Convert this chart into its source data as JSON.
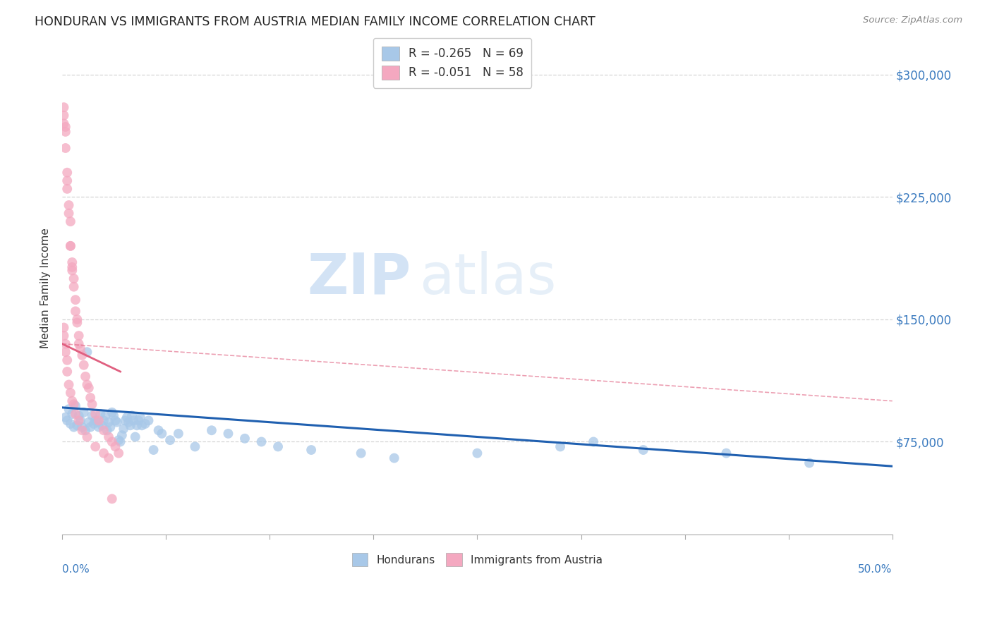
{
  "title": "HONDURAN VS IMMIGRANTS FROM AUSTRIA MEDIAN FAMILY INCOME CORRELATION CHART",
  "source": "Source: ZipAtlas.com",
  "ylabel": "Median Family Income",
  "y_ticks": [
    75000,
    150000,
    225000,
    300000
  ],
  "y_tick_labels": [
    "$75,000",
    "$150,000",
    "$225,000",
    "$300,000"
  ],
  "x_min": 0.0,
  "x_max": 0.5,
  "y_min": 18000,
  "y_max": 320000,
  "legend_blue_label": "R = -0.265   N = 69",
  "legend_pink_label": "R = -0.051   N = 58",
  "legend_bottom_blue": "Hondurans",
  "legend_bottom_pink": "Immigrants from Austria",
  "blue_color": "#a8c8e8",
  "pink_color": "#f4a8c0",
  "blue_line_color": "#2060b0",
  "pink_line_color": "#e06080",
  "watermark_zip": "ZIP",
  "watermark_atlas": "atlas",
  "blue_scatter_x": [
    0.002,
    0.003,
    0.004,
    0.005,
    0.006,
    0.007,
    0.008,
    0.009,
    0.01,
    0.011,
    0.012,
    0.013,
    0.014,
    0.015,
    0.016,
    0.017,
    0.018,
    0.019,
    0.02,
    0.021,
    0.022,
    0.023,
    0.024,
    0.025,
    0.026,
    0.027,
    0.028,
    0.029,
    0.03,
    0.031,
    0.032,
    0.033,
    0.034,
    0.035,
    0.036,
    0.037,
    0.038,
    0.039,
    0.04,
    0.041,
    0.042,
    0.043,
    0.044,
    0.045,
    0.046,
    0.047,
    0.048,
    0.05,
    0.052,
    0.055,
    0.058,
    0.06,
    0.065,
    0.07,
    0.08,
    0.09,
    0.1,
    0.11,
    0.12,
    0.13,
    0.15,
    0.18,
    0.2,
    0.25,
    0.3,
    0.32,
    0.35,
    0.4,
    0.45
  ],
  "blue_scatter_y": [
    90000,
    88000,
    95000,
    86000,
    92000,
    84000,
    97000,
    85000,
    91000,
    88000,
    84000,
    93000,
    82000,
    130000,
    87000,
    84000,
    91000,
    86000,
    88000,
    87000,
    84000,
    92000,
    85000,
    88000,
    91000,
    82000,
    87000,
    84000,
    93000,
    91000,
    88000,
    87000,
    76000,
    75000,
    79000,
    83000,
    88000,
    90000,
    87000,
    85000,
    91000,
    88000,
    78000,
    85000,
    88000,
    90000,
    85000,
    86000,
    88000,
    70000,
    82000,
    80000,
    76000,
    80000,
    72000,
    82000,
    80000,
    77000,
    75000,
    72000,
    70000,
    68000,
    65000,
    68000,
    72000,
    75000,
    70000,
    68000,
    62000
  ],
  "pink_scatter_x": [
    0.001,
    0.001,
    0.001,
    0.002,
    0.002,
    0.002,
    0.003,
    0.003,
    0.003,
    0.004,
    0.004,
    0.005,
    0.005,
    0.005,
    0.006,
    0.006,
    0.006,
    0.007,
    0.007,
    0.008,
    0.008,
    0.009,
    0.009,
    0.01,
    0.01,
    0.011,
    0.012,
    0.013,
    0.014,
    0.015,
    0.016,
    0.017,
    0.018,
    0.02,
    0.022,
    0.025,
    0.028,
    0.03,
    0.032,
    0.034,
    0.001,
    0.001,
    0.002,
    0.002,
    0.003,
    0.003,
    0.004,
    0.005,
    0.006,
    0.007,
    0.008,
    0.01,
    0.012,
    0.015,
    0.02,
    0.025,
    0.028,
    0.03
  ],
  "pink_scatter_y": [
    280000,
    275000,
    270000,
    265000,
    255000,
    268000,
    240000,
    235000,
    230000,
    215000,
    220000,
    210000,
    195000,
    195000,
    185000,
    180000,
    182000,
    175000,
    170000,
    162000,
    155000,
    150000,
    148000,
    140000,
    135000,
    132000,
    128000,
    122000,
    115000,
    110000,
    108000,
    102000,
    98000,
    92000,
    88000,
    82000,
    78000,
    75000,
    72000,
    68000,
    145000,
    140000,
    135000,
    130000,
    125000,
    118000,
    110000,
    105000,
    100000,
    98000,
    92000,
    88000,
    82000,
    78000,
    72000,
    68000,
    65000,
    40000
  ],
  "blue_trend_x": [
    0.0,
    0.5
  ],
  "blue_trend_y": [
    96000,
    60000
  ],
  "pink_trend_x": [
    0.0,
    0.035
  ],
  "pink_trend_y": [
    135000,
    118000
  ]
}
